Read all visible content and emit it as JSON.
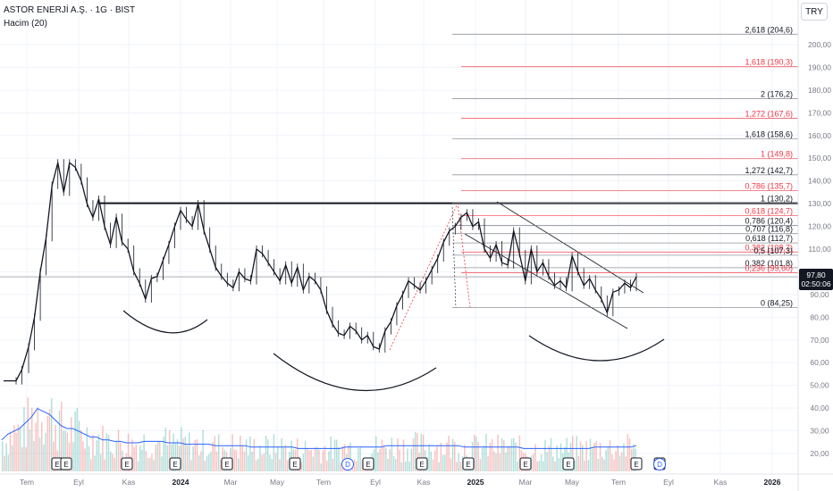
{
  "header": {
    "symbol_title": "ASTOR ENERJİ A.Ş. · 1G · BIST",
    "volume_indicator": "Hacim (20)",
    "currency_button": "TRY"
  },
  "colors": {
    "price": "#131722",
    "fib_black": "#787b86",
    "fib_red": "#f23645",
    "resistance": "#131722",
    "volume_up": "#26a69a",
    "volume_down": "#ef5350",
    "volume_ma": "#2962ff",
    "price_tag": "#131722"
  },
  "chart_data": {
    "type": "line",
    "symbol": "ASTOR",
    "timeframe": "1D",
    "price_axis": {
      "ticks": [
        20.0,
        30.0,
        40.0,
        50.0,
        60.0,
        70.0,
        80.0,
        90.0,
        100.0,
        110.0,
        120.0,
        130.0,
        140.0,
        150.0,
        160.0,
        170.0,
        180.0,
        190.0,
        200.0
      ],
      "tick_labels": [
        "20,00",
        "30,00",
        "40,00",
        "50,00",
        "60,00",
        "70,00",
        "80,00",
        "90,00",
        "100,00",
        "110,00",
        "120,00",
        "130,00",
        "140,00",
        "150,00",
        "160,00",
        "170,00",
        "180,00",
        "190,00",
        "200,00"
      ],
      "range": [
        12,
        214
      ]
    },
    "time_axis": {
      "labels": [
        "Tem",
        "Eyl",
        "Kas",
        "2024",
        "Mar",
        "May",
        "Tem",
        "Eyl",
        "Kas",
        "2025",
        "Mar",
        "May",
        "Tem",
        "Eyl",
        "Kas",
        "2026"
      ]
    },
    "price_series": {
      "name": "ASTOR",
      "points": [
        {
          "date": "2023-06-20",
          "close": 52
        },
        {
          "date": "2023-07-05",
          "close": 52
        },
        {
          "date": "2023-07-12",
          "close": 57
        },
        {
          "date": "2023-07-20",
          "close": 67
        },
        {
          "date": "2023-07-27",
          "close": 80
        },
        {
          "date": "2023-08-03",
          "close": 100
        },
        {
          "date": "2023-08-10",
          "close": 115
        },
        {
          "date": "2023-08-17",
          "close": 138
        },
        {
          "date": "2023-08-24",
          "close": 148
        },
        {
          "date": "2023-08-31",
          "close": 135
        },
        {
          "date": "2023-09-07",
          "close": 148
        },
        {
          "date": "2023-09-14",
          "close": 146
        },
        {
          "date": "2023-09-21",
          "close": 140
        },
        {
          "date": "2023-09-28",
          "close": 130
        },
        {
          "date": "2023-10-05",
          "close": 124
        },
        {
          "date": "2023-10-12",
          "close": 132
        },
        {
          "date": "2023-10-19",
          "close": 120
        },
        {
          "date": "2023-10-26",
          "close": 112
        },
        {
          "date": "2023-11-02",
          "close": 124
        },
        {
          "date": "2023-11-09",
          "close": 113
        },
        {
          "date": "2023-11-16",
          "close": 110
        },
        {
          "date": "2023-11-23",
          "close": 100
        },
        {
          "date": "2023-11-30",
          "close": 95
        },
        {
          "date": "2023-12-07",
          "close": 88
        },
        {
          "date": "2023-12-14",
          "close": 97
        },
        {
          "date": "2023-12-21",
          "close": 98
        },
        {
          "date": "2023-12-28",
          "close": 105
        },
        {
          "date": "2024-01-04",
          "close": 112
        },
        {
          "date": "2024-01-11",
          "close": 120
        },
        {
          "date": "2024-01-18",
          "close": 127
        },
        {
          "date": "2024-01-25",
          "close": 123
        },
        {
          "date": "2024-02-01",
          "close": 120
        },
        {
          "date": "2024-02-08",
          "close": 130
        },
        {
          "date": "2024-02-15",
          "close": 118
        },
        {
          "date": "2024-02-22",
          "close": 110
        },
        {
          "date": "2024-02-29",
          "close": 102
        },
        {
          "date": "2024-03-07",
          "close": 98
        },
        {
          "date": "2024-03-14",
          "close": 95
        },
        {
          "date": "2024-03-21",
          "close": 93
        },
        {
          "date": "2024-03-28",
          "close": 100
        },
        {
          "date": "2024-04-04",
          "close": 97
        },
        {
          "date": "2024-04-11",
          "close": 96
        },
        {
          "date": "2024-04-18",
          "close": 110
        },
        {
          "date": "2024-04-25",
          "close": 108
        },
        {
          "date": "2024-05-02",
          "close": 104
        },
        {
          "date": "2024-05-09",
          "close": 100
        },
        {
          "date": "2024-05-16",
          "close": 96
        },
        {
          "date": "2024-05-23",
          "close": 103
        },
        {
          "date": "2024-05-30",
          "close": 95
        },
        {
          "date": "2024-06-06",
          "close": 102
        },
        {
          "date": "2024-06-13",
          "close": 92
        },
        {
          "date": "2024-06-20",
          "close": 98
        },
        {
          "date": "2024-06-27",
          "close": 96
        },
        {
          "date": "2024-07-04",
          "close": 92
        },
        {
          "date": "2024-07-11",
          "close": 83
        },
        {
          "date": "2024-07-18",
          "close": 77
        },
        {
          "date": "2024-07-25",
          "close": 73
        },
        {
          "date": "2024-08-01",
          "close": 72
        },
        {
          "date": "2024-08-08",
          "close": 76
        },
        {
          "date": "2024-08-15",
          "close": 74
        },
        {
          "date": "2024-08-22",
          "close": 70
        },
        {
          "date": "2024-08-29",
          "close": 72
        },
        {
          "date": "2024-09-05",
          "close": 67
        },
        {
          "date": "2024-09-12",
          "close": 66
        },
        {
          "date": "2024-09-19",
          "close": 74
        },
        {
          "date": "2024-09-26",
          "close": 78
        },
        {
          "date": "2024-10-03",
          "close": 85
        },
        {
          "date": "2024-10-10",
          "close": 90
        },
        {
          "date": "2024-10-17",
          "close": 96
        },
        {
          "date": "2024-10-24",
          "close": 94
        },
        {
          "date": "2024-10-31",
          "close": 92
        },
        {
          "date": "2024-11-07",
          "close": 96
        },
        {
          "date": "2024-11-14",
          "close": 101
        },
        {
          "date": "2024-11-21",
          "close": 106
        },
        {
          "date": "2024-11-28",
          "close": 113
        },
        {
          "date": "2024-12-05",
          "close": 118
        },
        {
          "date": "2024-12-12",
          "close": 120
        },
        {
          "date": "2024-12-19",
          "close": 124
        },
        {
          "date": "2024-12-26",
          "close": 126
        },
        {
          "date": "2025-01-02",
          "close": 120
        },
        {
          "date": "2025-01-09",
          "close": 122
        },
        {
          "date": "2025-01-16",
          "close": 110
        },
        {
          "date": "2025-01-23",
          "close": 106
        },
        {
          "date": "2025-01-30",
          "close": 112
        },
        {
          "date": "2025-02-06",
          "close": 104
        },
        {
          "date": "2025-02-13",
          "close": 103
        },
        {
          "date": "2025-02-20",
          "close": 118
        },
        {
          "date": "2025-02-27",
          "close": 108
        },
        {
          "date": "2025-03-06",
          "close": 96
        },
        {
          "date": "2025-03-13",
          "close": 110
        },
        {
          "date": "2025-03-20",
          "close": 100
        },
        {
          "date": "2025-03-27",
          "close": 104
        },
        {
          "date": "2025-04-03",
          "close": 98
        },
        {
          "date": "2025-04-10",
          "close": 94
        },
        {
          "date": "2025-04-17",
          "close": 96
        },
        {
          "date": "2025-04-24",
          "close": 93
        },
        {
          "date": "2025-05-01",
          "close": 107
        },
        {
          "date": "2025-05-08",
          "close": 100
        },
        {
          "date": "2025-05-15",
          "close": 94
        },
        {
          "date": "2025-05-22",
          "close": 97
        },
        {
          "date": "2025-05-29",
          "close": 92
        },
        {
          "date": "2025-06-05",
          "close": 88
        },
        {
          "date": "2025-06-12",
          "close": 82
        },
        {
          "date": "2025-06-19",
          "close": 91
        },
        {
          "date": "2025-06-26",
          "close": 92
        },
        {
          "date": "2025-07-03",
          "close": 95
        },
        {
          "date": "2025-07-10",
          "close": 93
        },
        {
          "date": "2025-07-17",
          "close": 97.8
        }
      ]
    },
    "volume_series": {
      "name": "Hacim (20)",
      "values": [
        22,
        26,
        28,
        30,
        34,
        38,
        44,
        42,
        40,
        36,
        32,
        30,
        30,
        28,
        26,
        24,
        24,
        22,
        22,
        21,
        21,
        20,
        20,
        20,
        21,
        21,
        21,
        21,
        20,
        20,
        20,
        19,
        19,
        19,
        19,
        19,
        18,
        18,
        18,
        18,
        18,
        18,
        17,
        17,
        17,
        17,
        17,
        17,
        17,
        17,
        16,
        16,
        16,
        16,
        16,
        16,
        16,
        16,
        17,
        17,
        17,
        17,
        17,
        17,
        17,
        18,
        18,
        18,
        18,
        18,
        18,
        18,
        18,
        18,
        18,
        18,
        18,
        18,
        17,
        17,
        17,
        17,
        17,
        17,
        17,
        17,
        17,
        17,
        16,
        16,
        16,
        16,
        16,
        16,
        16,
        16,
        16,
        16,
        16,
        16,
        17,
        17,
        17,
        17,
        17,
        17,
        17,
        18
      ]
    },
    "resistance_level": 130.2,
    "fib_extension_right": [
      {
        "label": "2,618 (204,6)",
        "value": 204.6,
        "color": "black"
      },
      {
        "label": "1,618 (190,3)",
        "value": 190.3,
        "color": "red"
      },
      {
        "label": "2 (176,2)",
        "value": 176.2,
        "color": "black"
      },
      {
        "label": "1,272 (167,6)",
        "value": 167.6,
        "color": "red"
      },
      {
        "label": "1,618 (158,6)",
        "value": 158.6,
        "color": "black"
      },
      {
        "label": "1 (149,8)",
        "value": 149.8,
        "color": "red"
      },
      {
        "label": "1,272 (142,7)",
        "value": 142.7,
        "color": "black"
      },
      {
        "label": "0,786 (135,7)",
        "value": 135.7,
        "color": "red"
      },
      {
        "label": "1 (130,2)",
        "value": 130.2,
        "color": "black"
      },
      {
        "label": "0,618 (124,7)",
        "value": 124.7,
        "color": "red"
      },
      {
        "label": "0,786 (120,4)",
        "value": 120.4,
        "color": "black"
      },
      {
        "label": "0,707 (116,8)",
        "value": 116.8,
        "color": "black"
      },
      {
        "label": "0,618 (112,7)",
        "value": 112.7,
        "color": "black"
      },
      {
        "label": "0,382 (108,7)",
        "value": 108.7,
        "color": "red"
      },
      {
        "label": "0,5 (107,3)",
        "value": 107.3,
        "color": "black"
      },
      {
        "label": "0,382 (101,8)",
        "value": 101.8,
        "color": "black"
      },
      {
        "label": "0,236 (99,60)",
        "value": 99.6,
        "color": "red"
      },
      {
        "label": "0 (84,25)",
        "value": 84.25,
        "color": "black"
      }
    ],
    "last_price": {
      "value": "97,80",
      "countdown": "02:50:06"
    },
    "event_markers": [
      {
        "type": "E"
      },
      {
        "type": "E"
      },
      {
        "type": "E"
      },
      {
        "type": "E"
      },
      {
        "type": "E"
      },
      {
        "type": "E"
      },
      {
        "type": "D"
      },
      {
        "type": "E"
      },
      {
        "type": "E"
      },
      {
        "type": "E"
      },
      {
        "type": "E"
      },
      {
        "type": "E"
      },
      {
        "type": "E"
      },
      {
        "type": "E"
      },
      {
        "type": "split"
      },
      {
        "type": "D"
      }
    ]
  }
}
